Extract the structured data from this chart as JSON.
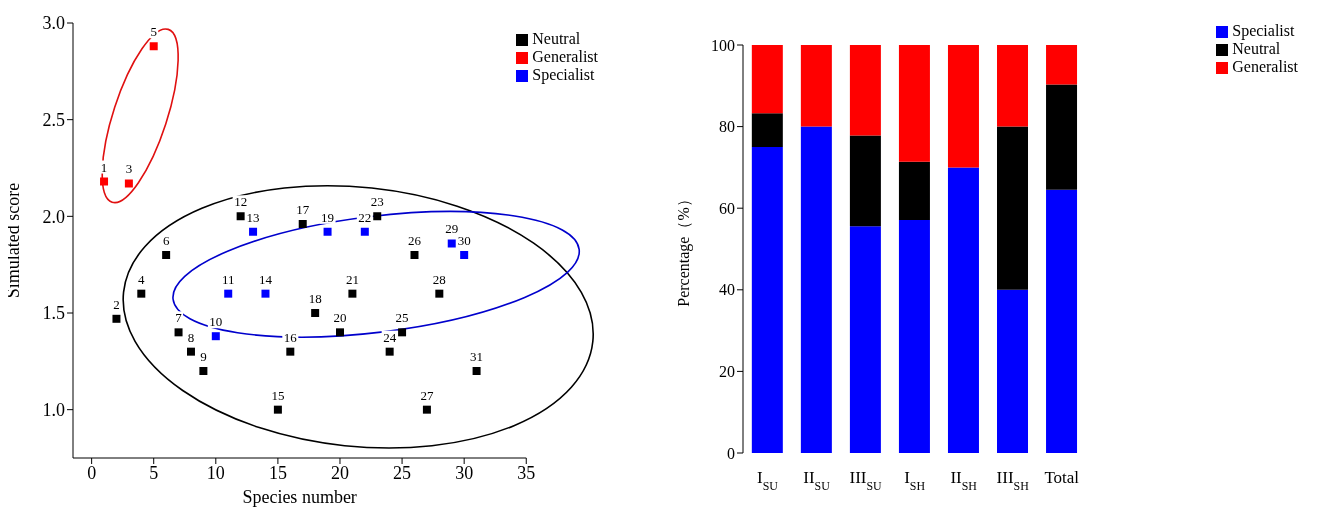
{
  "chart_data": [
    {
      "type": "scatter",
      "xlabel": "Species  number",
      "ylabel": "Simulated score",
      "xlim": [
        -1.5,
        35
      ],
      "xticks": [
        0,
        5,
        10,
        15,
        20,
        25,
        30,
        35
      ],
      "ylim": [
        0.75,
        3.0
      ],
      "yticks": [
        {
          "value": 1,
          "label": "1.0"
        },
        {
          "value": 1.5,
          "label": "1.5"
        },
        {
          "value": 2,
          "label": "2.0"
        },
        {
          "value": 2.5,
          "label": "2.5"
        },
        {
          "value": 3,
          "label": "3.0"
        }
      ],
      "grid": false,
      "legend": "top right",
      "marker": "square",
      "series": [
        {
          "name": "Neutral",
          "color": "#000000",
          "x": [
            2,
            4,
            6,
            7,
            8,
            9,
            12,
            15,
            16,
            17,
            18,
            20,
            21,
            23,
            24,
            25,
            26,
            27,
            28,
            31
          ],
          "values": [
            1.47,
            1.6,
            1.8,
            1.4,
            1.3,
            1.2,
            2.0,
            1.0,
            1.3,
            1.96,
            1.5,
            1.4,
            1.6,
            2.0,
            1.3,
            1.4,
            1.8,
            1.0,
            1.6,
            1.2
          ]
        },
        {
          "name": "Generalist",
          "color": "#ff0000",
          "x": [
            1,
            3,
            5
          ],
          "values": [
            2.18,
            2.17,
            2.88
          ]
        },
        {
          "name": "Specialist",
          "color": "#0000ff",
          "x": [
            10,
            11,
            13,
            14,
            19,
            22,
            29,
            30
          ],
          "values": [
            1.38,
            1.6,
            1.92,
            1.6,
            1.92,
            1.92,
            1.86,
            1.8
          ]
        }
      ],
      "annotations": [
        {
          "text": "1",
          "x": 1,
          "y": 2.18
        },
        {
          "text": "2",
          "x": 2,
          "y": 1.47
        },
        {
          "text": "3",
          "x": 3,
          "y": 2.17
        },
        {
          "text": "4",
          "x": 4,
          "y": 1.6
        },
        {
          "text": "5",
          "x": 5,
          "y": 2.88
        },
        {
          "text": "6",
          "x": 6,
          "y": 1.8
        },
        {
          "text": "7",
          "x": 7,
          "y": 1.4
        },
        {
          "text": "8",
          "x": 8,
          "y": 1.3
        },
        {
          "text": "9",
          "x": 9,
          "y": 1.2
        },
        {
          "text": "10",
          "x": 10,
          "y": 1.38
        },
        {
          "text": "11",
          "x": 11,
          "y": 1.6
        },
        {
          "text": "12",
          "x": 12,
          "y": 2.0
        },
        {
          "text": "13",
          "x": 13,
          "y": 1.92
        },
        {
          "text": "14",
          "x": 14,
          "y": 1.6
        },
        {
          "text": "15",
          "x": 15,
          "y": 1.0
        },
        {
          "text": "16",
          "x": 16,
          "y": 1.3
        },
        {
          "text": "17",
          "x": 17,
          "y": 1.96
        },
        {
          "text": "18",
          "x": 18,
          "y": 1.5
        },
        {
          "text": "19",
          "x": 19,
          "y": 1.92
        },
        {
          "text": "20",
          "x": 20,
          "y": 1.4
        },
        {
          "text": "21",
          "x": 21,
          "y": 1.6
        },
        {
          "text": "22",
          "x": 22,
          "y": 1.92
        },
        {
          "text": "23",
          "x": 23,
          "y": 2.0
        },
        {
          "text": "24",
          "x": 24,
          "y": 1.3
        },
        {
          "text": "25",
          "x": 25,
          "y": 1.4
        },
        {
          "text": "26",
          "x": 26,
          "y": 1.8
        },
        {
          "text": "27",
          "x": 27,
          "y": 1.0
        },
        {
          "text": "28",
          "x": 28,
          "y": 1.6
        },
        {
          "text": "29",
          "x": 29,
          "y": 1.86
        },
        {
          "text": "30",
          "x": 30,
          "y": 1.8
        },
        {
          "text": "31",
          "x": 31,
          "y": 1.2
        }
      ]
    },
    {
      "type": "bar",
      "stacked": true,
      "ylabel": "Percentage（%）",
      "categories": [
        "I$_{SU}$",
        "II$_{SU}$",
        "III$_{SU}$",
        "I$_{SH}$",
        "II$_{SH}$",
        "III$_{SH}$",
        "Total"
      ],
      "ylim": [
        0,
        100
      ],
      "yticks": [
        0,
        20,
        40,
        60,
        80,
        100
      ],
      "grid": false,
      "legend": "top right",
      "series": [
        {
          "name": "Specialist",
          "color": "#0000ff",
          "values": [
            75,
            80,
            55.6,
            57.1,
            70,
            40,
            64.5
          ]
        },
        {
          "name": "Neutral",
          "color": "#000000",
          "values": [
            8.3,
            0,
            22.2,
            14.3,
            0,
            40,
            25.8
          ]
        },
        {
          "name": "Generalist",
          "color": "#ff0000",
          "values": [
            16.7,
            20,
            22.2,
            28.6,
            30,
            20,
            9.7
          ]
        }
      ]
    }
  ]
}
